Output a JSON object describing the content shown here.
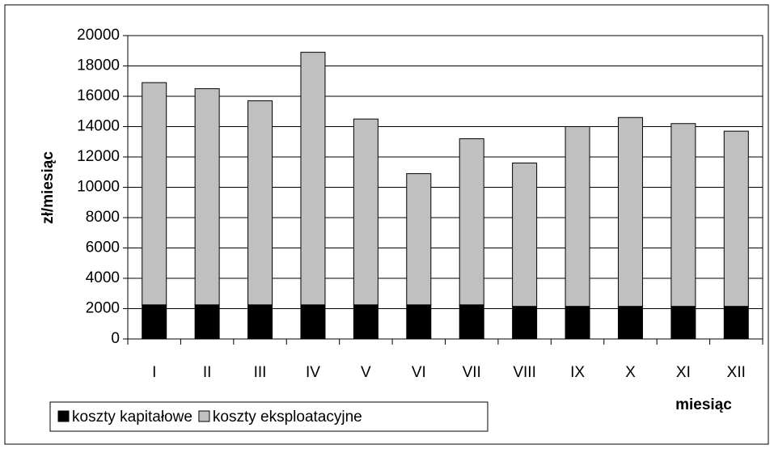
{
  "chart_data": {
    "type": "stacked_bar",
    "categories": [
      "I",
      "II",
      "III",
      "IV",
      "V",
      "VI",
      "VII",
      "VIII",
      "IX",
      "X",
      "XI",
      "XII"
    ],
    "series": [
      {
        "name": "koszty kapitałowe",
        "color": "#000000",
        "values": [
          2250,
          2250,
          2250,
          2250,
          2250,
          2250,
          2250,
          2150,
          2150,
          2150,
          2150,
          2150
        ]
      },
      {
        "name": "koszty eksploatacyjne",
        "color": "#c0c0c0",
        "values": [
          14650,
          14250,
          13450,
          16650,
          12250,
          8650,
          10950,
          9450,
          11850,
          12450,
          12050,
          11550
        ]
      }
    ],
    "ylabel": "zł/miesiąc",
    "xlabel": "miesiąc",
    "ylim": [
      0,
      20000
    ],
    "yticks": [
      0,
      2000,
      4000,
      6000,
      8000,
      10000,
      12000,
      14000,
      16000,
      18000,
      20000
    ],
    "grid": true,
    "legend": "bottom-left"
  }
}
